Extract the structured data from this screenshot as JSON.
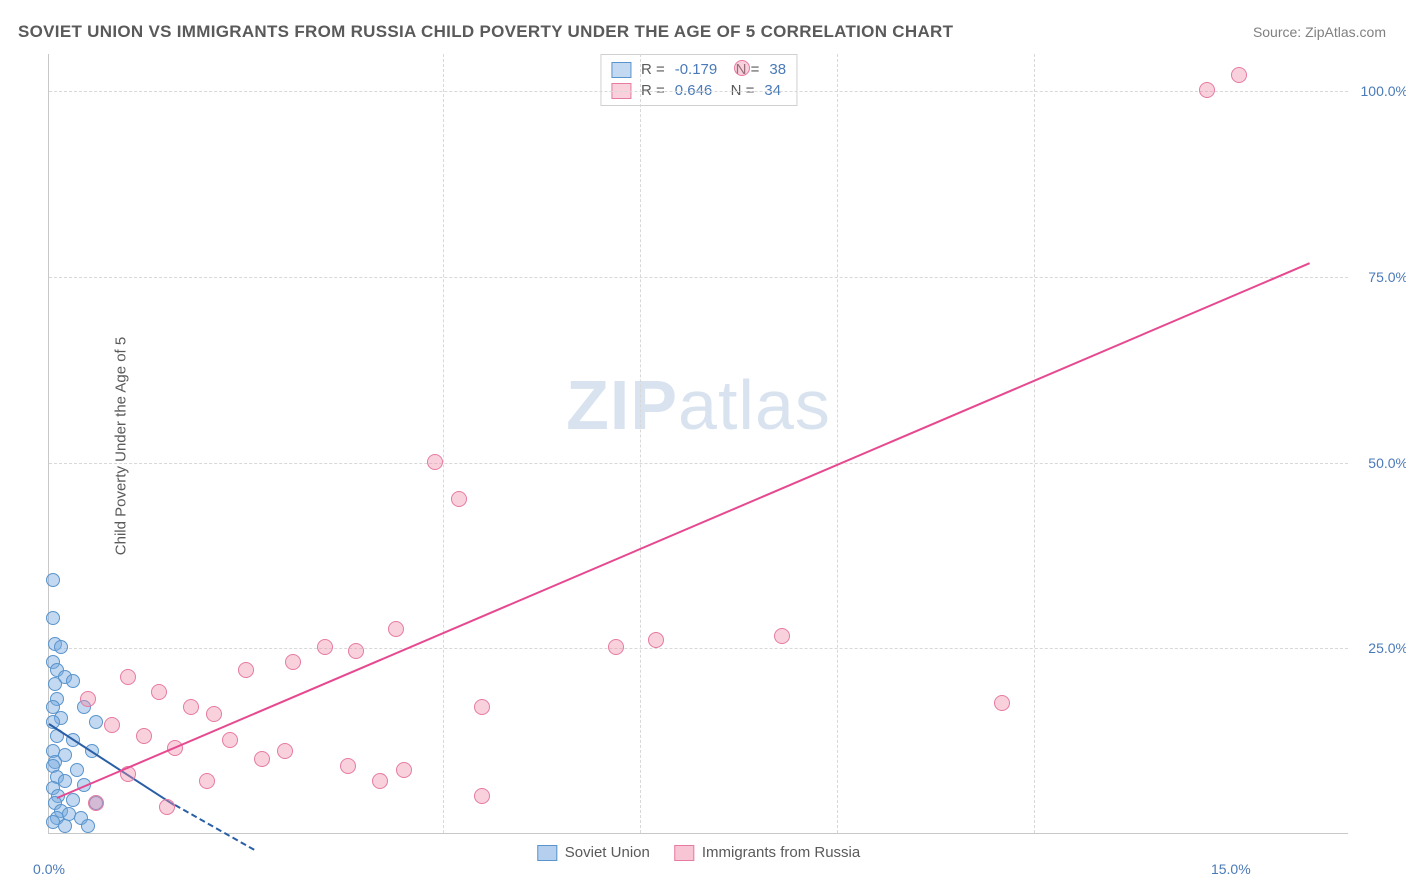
{
  "title": "SOVIET UNION VS IMMIGRANTS FROM RUSSIA CHILD POVERTY UNDER THE AGE OF 5 CORRELATION CHART",
  "source": "Source: ZipAtlas.com",
  "ylabel": "Child Poverty Under the Age of 5",
  "watermark": {
    "bold": "ZIP",
    "rest": "atlas"
  },
  "chart": {
    "type": "scatter",
    "xlim": [
      0,
      16.5
    ],
    "ylim": [
      0,
      105
    ],
    "yticks": [
      {
        "v": 25,
        "label": "25.0%"
      },
      {
        "v": 50,
        "label": "50.0%"
      },
      {
        "v": 75,
        "label": "75.0%"
      },
      {
        "v": 100,
        "label": "100.0%"
      }
    ],
    "xticks": [
      {
        "v": 0,
        "label": "0.0%"
      },
      {
        "v": 15,
        "label": "15.0%"
      }
    ],
    "xsubticks": [
      5,
      7.5,
      10,
      12.5
    ],
    "background_color": "#ffffff",
    "grid_color": "#d8d8d8",
    "series": [
      {
        "name": "Soviet Union",
        "fill_color": "rgba(120,170,225,0.45)",
        "stroke_color": "#5a94cc",
        "line_color": "#2a5fa5",
        "marker_radius": 7,
        "R": "-0.179",
        "N": "38",
        "trend": {
          "x1": 0,
          "y1": 15,
          "x2": 1.6,
          "y2": 4
        },
        "trend_dashed": {
          "x1": 1.6,
          "y1": 4,
          "x2": 2.6,
          "y2": -2
        },
        "points": [
          {
            "x": 0.05,
            "y": 34
          },
          {
            "x": 0.05,
            "y": 29
          },
          {
            "x": 0.07,
            "y": 25.5
          },
          {
            "x": 0.15,
            "y": 25
          },
          {
            "x": 0.05,
            "y": 23
          },
          {
            "x": 0.1,
            "y": 22
          },
          {
            "x": 0.2,
            "y": 21
          },
          {
            "x": 0.08,
            "y": 20
          },
          {
            "x": 0.3,
            "y": 20.5
          },
          {
            "x": 0.1,
            "y": 18
          },
          {
            "x": 0.05,
            "y": 17
          },
          {
            "x": 0.45,
            "y": 17
          },
          {
            "x": 0.15,
            "y": 15.5
          },
          {
            "x": 0.05,
            "y": 15
          },
          {
            "x": 0.6,
            "y": 15
          },
          {
            "x": 0.1,
            "y": 13
          },
          {
            "x": 0.3,
            "y": 12.5
          },
          {
            "x": 0.05,
            "y": 11
          },
          {
            "x": 0.2,
            "y": 10.5
          },
          {
            "x": 0.55,
            "y": 11
          },
          {
            "x": 0.08,
            "y": 9.5
          },
          {
            "x": 0.05,
            "y": 9
          },
          {
            "x": 0.35,
            "y": 8.5
          },
          {
            "x": 0.1,
            "y": 7.5
          },
          {
            "x": 0.2,
            "y": 7
          },
          {
            "x": 0.45,
            "y": 6.5
          },
          {
            "x": 0.05,
            "y": 6
          },
          {
            "x": 0.12,
            "y": 5
          },
          {
            "x": 0.3,
            "y": 4.5
          },
          {
            "x": 0.6,
            "y": 4
          },
          {
            "x": 0.08,
            "y": 4
          },
          {
            "x": 0.15,
            "y": 3
          },
          {
            "x": 0.25,
            "y": 2.5
          },
          {
            "x": 0.4,
            "y": 2
          },
          {
            "x": 0.1,
            "y": 2
          },
          {
            "x": 0.05,
            "y": 1.5
          },
          {
            "x": 0.2,
            "y": 1
          },
          {
            "x": 0.5,
            "y": 1
          }
        ]
      },
      {
        "name": "Immigrants from Russia",
        "fill_color": "rgba(240,140,170,0.40)",
        "stroke_color": "#e67aa0",
        "line_color": "#e64990",
        "marker_radius": 8,
        "R": "0.646",
        "N": "34",
        "trend": {
          "x1": 0.1,
          "y1": 5,
          "x2": 16.0,
          "y2": 77
        },
        "points": [
          {
            "x": 8.8,
            "y": 103
          },
          {
            "x": 15.1,
            "y": 102
          },
          {
            "x": 14.7,
            "y": 100
          },
          {
            "x": 4.9,
            "y": 50
          },
          {
            "x": 5.2,
            "y": 45
          },
          {
            "x": 4.4,
            "y": 27.5
          },
          {
            "x": 7.2,
            "y": 25
          },
          {
            "x": 7.7,
            "y": 26
          },
          {
            "x": 9.3,
            "y": 26.5
          },
          {
            "x": 3.5,
            "y": 25
          },
          {
            "x": 3.9,
            "y": 24.5
          },
          {
            "x": 3.1,
            "y": 23
          },
          {
            "x": 2.5,
            "y": 22
          },
          {
            "x": 1.0,
            "y": 21
          },
          {
            "x": 1.4,
            "y": 19
          },
          {
            "x": 0.5,
            "y": 18
          },
          {
            "x": 1.8,
            "y": 17
          },
          {
            "x": 12.1,
            "y": 17.5
          },
          {
            "x": 2.1,
            "y": 16
          },
          {
            "x": 5.5,
            "y": 17
          },
          {
            "x": 0.8,
            "y": 14.5
          },
          {
            "x": 1.2,
            "y": 13
          },
          {
            "x": 2.3,
            "y": 12.5
          },
          {
            "x": 1.6,
            "y": 11.5
          },
          {
            "x": 3.0,
            "y": 11
          },
          {
            "x": 2.7,
            "y": 10
          },
          {
            "x": 3.8,
            "y": 9
          },
          {
            "x": 4.5,
            "y": 8.5
          },
          {
            "x": 1.0,
            "y": 8
          },
          {
            "x": 2.0,
            "y": 7
          },
          {
            "x": 4.2,
            "y": 7
          },
          {
            "x": 5.5,
            "y": 5
          },
          {
            "x": 0.6,
            "y": 4
          },
          {
            "x": 1.5,
            "y": 3.5
          }
        ]
      }
    ]
  },
  "legend_bottom": [
    {
      "label": "Soviet Union",
      "fill": "rgba(120,170,225,0.55)",
      "stroke": "#5a94cc"
    },
    {
      "label": "Immigrants from Russia",
      "fill": "rgba(240,140,170,0.50)",
      "stroke": "#e67aa0"
    }
  ]
}
